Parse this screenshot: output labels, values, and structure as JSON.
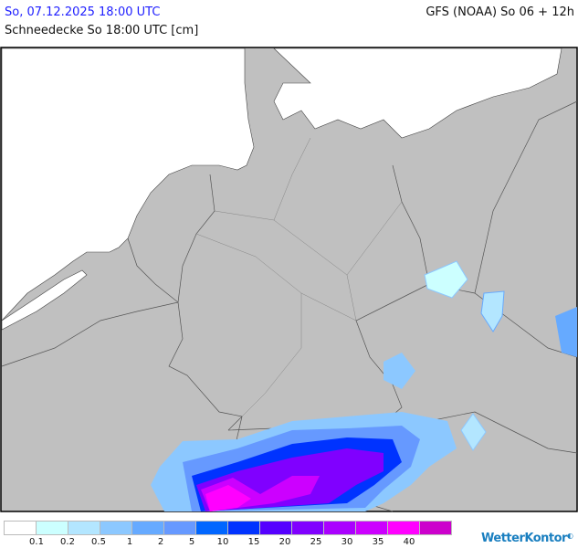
{
  "header": {
    "date": "So, 07.12.2025 18:00 UTC",
    "model": "GFS (NOAA) So 06 + 12h",
    "parameter": "Schneedecke So 18:00 UTC [cm]"
  },
  "map": {
    "land_color": "#c0c0c0",
    "sea_color": "#ffffff",
    "border_color": "#555555"
  },
  "legend": {
    "colors": [
      "#ffffff",
      "#ccffff",
      "#b3e6ff",
      "#8cc8ff",
      "#66aaff",
      "#6699ff",
      "#0066ff",
      "#0033ff",
      "#5500ff",
      "#8000ff",
      "#aa00ff",
      "#cc00ff",
      "#ff00ff",
      "#cc00cc"
    ],
    "labels": [
      "0.1",
      "0.2",
      "0.5",
      "1",
      "2",
      "5",
      "10",
      "15",
      "20",
      "25",
      "30",
      "35",
      "40"
    ]
  },
  "branding": {
    "logo_text": "WetterKontor"
  }
}
